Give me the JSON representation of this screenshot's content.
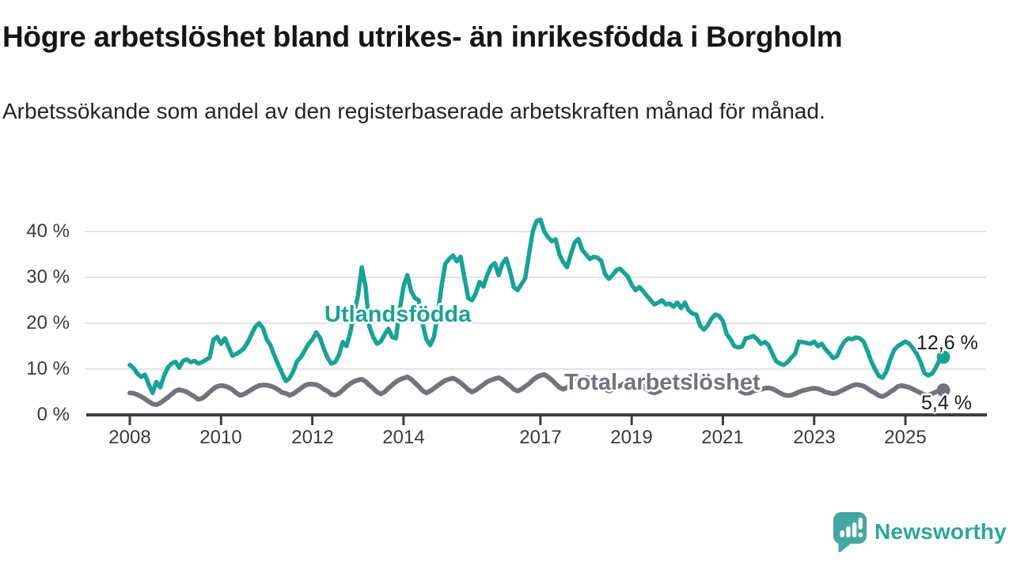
{
  "header": {
    "title": "Högre arbetslöshet bland utrikes- än inrikesfödda i Borgholm",
    "subtitle": "Arbetssökande som andel av den registerbaserade arbetskraften månad för månad."
  },
  "chart_data": {
    "type": "line",
    "unit": "%",
    "frequency": "monthly",
    "x_start_year": 2008,
    "x_end": "2025-11",
    "ylim": [
      0,
      45
    ],
    "grid": true,
    "grid_color": "#e4e4e4",
    "axis_color": "#3e3e3e",
    "yticks": [
      {
        "value": 0,
        "label": "0 %"
      },
      {
        "value": 10,
        "label": "10 %"
      },
      {
        "value": 20,
        "label": "20 %"
      },
      {
        "value": 30,
        "label": "30 %"
      },
      {
        "value": 40,
        "label": "40 %"
      }
    ],
    "xticks": [
      {
        "year": 2008,
        "label": "2008"
      },
      {
        "year": 2010,
        "label": "2010"
      },
      {
        "year": 2012,
        "label": "2012"
      },
      {
        "year": 2014,
        "label": "2014"
      },
      {
        "year": 2017,
        "label": "2017"
      },
      {
        "year": 2019,
        "label": "2019"
      },
      {
        "year": 2021,
        "label": "2021"
      },
      {
        "year": 2023,
        "label": "2023"
      },
      {
        "year": 2025,
        "label": "2025"
      }
    ],
    "series": [
      {
        "name": "Utlandsfödda",
        "color": "#1aa296",
        "width": 5.5,
        "end_label": "12,6 %",
        "end_value": 12.6,
        "values": [
          10.9,
          10.2,
          9.0,
          8.3,
          8.8,
          6.6,
          4.8,
          7.2,
          6.0,
          8.5,
          10.3,
          11.2,
          11.6,
          10.3,
          11.8,
          12.1,
          11.5,
          11.8,
          11.2,
          11.5,
          12.0,
          12.5,
          16.4,
          17.0,
          15.5,
          16.7,
          14.8,
          12.9,
          13.3,
          13.8,
          14.5,
          15.8,
          17.5,
          19.2,
          20.0,
          19.0,
          16.5,
          15.2,
          13.0,
          11.0,
          9.2,
          7.4,
          8.0,
          9.5,
          11.7,
          12.6,
          14.0,
          15.5,
          16.4,
          18.0,
          16.9,
          14.5,
          12.5,
          11.2,
          11.5,
          13.0,
          15.9,
          15.0,
          18.0,
          22.0,
          26.0,
          32.2,
          28.0,
          19.3,
          17.0,
          15.5,
          16.0,
          17.5,
          18.8,
          17.0,
          16.7,
          23.0,
          28.0,
          30.5,
          27.0,
          25.5,
          25.0,
          20.0,
          16.5,
          15.2,
          17.0,
          22.0,
          28.0,
          33.0,
          34.0,
          34.8,
          33.5,
          34.5,
          30.0,
          25.5,
          25.0,
          26.5,
          29.0,
          28.0,
          30.5,
          32.4,
          33.1,
          30.5,
          33.0,
          34.1,
          31.4,
          27.9,
          27.2,
          28.5,
          29.8,
          35.0,
          40.0,
          42.3,
          42.6,
          40.0,
          38.8,
          37.9,
          38.3,
          35.0,
          33.3,
          32.2,
          35.0,
          37.6,
          38.4,
          36.0,
          35.0,
          34.0,
          34.5,
          34.3,
          33.6,
          30.7,
          29.7,
          30.5,
          31.6,
          31.9,
          31.0,
          30.2,
          28.4,
          27.2,
          27.9,
          27.0,
          26.0,
          25.0,
          24.1,
          24.5,
          25.0,
          24.1,
          24.3,
          23.6,
          24.5,
          23.3,
          24.5,
          22.8,
          22.1,
          21.9,
          19.5,
          18.6,
          19.5,
          21.0,
          21.9,
          21.6,
          20.5,
          17.6,
          16.5,
          15.0,
          14.7,
          14.9,
          16.7,
          16.9,
          17.2,
          16.5,
          15.5,
          15.9,
          15.2,
          13.4,
          11.7,
          11.2,
          10.9,
          11.5,
          12.5,
          13.4,
          16.0,
          15.9,
          15.7,
          15.5,
          16.0,
          15.0,
          15.5,
          14.3,
          13.4,
          12.4,
          12.8,
          14.7,
          16.0,
          16.7,
          16.5,
          16.9,
          16.7,
          16.0,
          14.0,
          11.7,
          10.0,
          8.5,
          8.1,
          9.5,
          12.0,
          14.1,
          15.0,
          15.5,
          16.0,
          15.5,
          14.5,
          13.3,
          11.5,
          9.1,
          8.6,
          9.0,
          10.3,
          12.1,
          12.6
        ]
      },
      {
        "name": "Total arbetslöshet",
        "color": "#73737b",
        "width": 6,
        "end_label": "5,4 %",
        "end_value": 5.4,
        "values": [
          4.8,
          4.7,
          4.4,
          4.0,
          3.5,
          2.9,
          2.4,
          2.2,
          2.6,
          3.2,
          3.8,
          4.5,
          5.2,
          5.5,
          5.3,
          5.0,
          4.5,
          4.0,
          3.4,
          3.6,
          4.2,
          5.0,
          5.7,
          6.2,
          6.4,
          6.3,
          6.0,
          5.5,
          4.8,
          4.3,
          4.5,
          5.0,
          5.5,
          6.0,
          6.4,
          6.5,
          6.5,
          6.3,
          6.0,
          5.5,
          4.9,
          4.7,
          4.3,
          4.6,
          5.2,
          5.8,
          6.4,
          6.7,
          6.7,
          6.6,
          6.2,
          5.6,
          5.2,
          4.5,
          4.3,
          4.7,
          5.4,
          6.2,
          6.8,
          7.3,
          7.6,
          7.8,
          7.3,
          6.5,
          5.8,
          5.0,
          4.6,
          5.0,
          5.8,
          6.5,
          7.2,
          7.7,
          8.0,
          8.3,
          7.8,
          7.0,
          6.2,
          5.3,
          4.8,
          5.2,
          5.8,
          6.4,
          7.0,
          7.5,
          7.8,
          8.0,
          7.6,
          7.0,
          6.3,
          5.5,
          5.0,
          5.4,
          6.0,
          6.6,
          7.2,
          7.6,
          7.9,
          8.1,
          7.7,
          7.0,
          6.4,
          5.6,
          5.2,
          5.6,
          6.2,
          6.8,
          7.6,
          8.2,
          8.6,
          8.8,
          8.3,
          7.6,
          6.8,
          6.0,
          5.6,
          6.0,
          6.6,
          7.0,
          7.6,
          8.0,
          8.2,
          8.0,
          7.6,
          7.0,
          6.3,
          5.6,
          5.2,
          5.5,
          6.0,
          6.4,
          6.8,
          7.2,
          7.3,
          7.2,
          6.8,
          6.2,
          5.6,
          5.0,
          4.8,
          5.1,
          5.6,
          6.0,
          6.4,
          6.8,
          7.0,
          7.0,
          7.5,
          8.2,
          8.5,
          8.3,
          7.8,
          7.6,
          7.4,
          7.2,
          7.0,
          7.0,
          7.2,
          7.0,
          6.6,
          6.0,
          5.5,
          5.0,
          4.7,
          4.8,
          5.2,
          5.4,
          5.6,
          5.8,
          5.9,
          5.7,
          5.3,
          4.8,
          4.4,
          4.2,
          4.3,
          4.6,
          5.0,
          5.3,
          5.5,
          5.7,
          5.8,
          5.7,
          5.4,
          5.0,
          4.8,
          4.6,
          4.8,
          5.2,
          5.6,
          6.0,
          6.4,
          6.6,
          6.5,
          6.3,
          5.8,
          5.2,
          4.8,
          4.2,
          4.0,
          4.4,
          5.0,
          5.5,
          6.2,
          6.4,
          6.2,
          6.0,
          5.6,
          5.2,
          4.8,
          4.4,
          4.3,
          4.6,
          5.0,
          5.2,
          5.4
        ]
      }
    ]
  },
  "footer": {
    "brand": "Newsworthy"
  }
}
